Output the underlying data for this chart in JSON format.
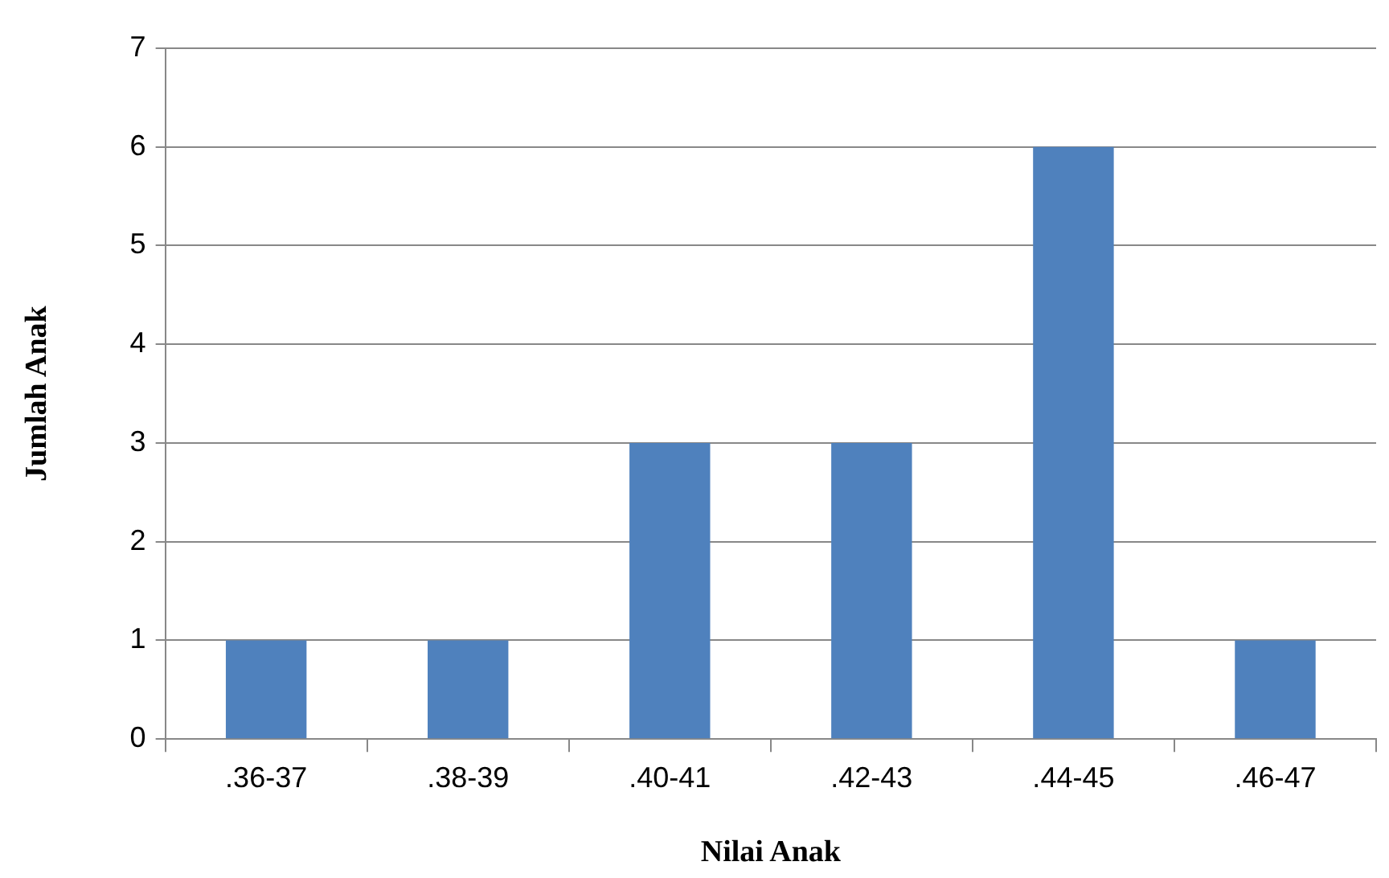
{
  "chart_data": {
    "type": "bar",
    "xlabel": "Nilai Anak",
    "ylabel": "Jumlah Anak",
    "categories": [
      ".36-37",
      ".38-39",
      ".40-41",
      ".42-43",
      ".44-45",
      ".46-47"
    ],
    "values": [
      1,
      1,
      3,
      3,
      6,
      1
    ],
    "color": "#4f81bd",
    "ylim": [
      0,
      7
    ],
    "yticks": [
      0,
      1,
      2,
      3,
      4,
      5,
      6,
      7
    ],
    "grid": "y",
    "legend": false
  }
}
